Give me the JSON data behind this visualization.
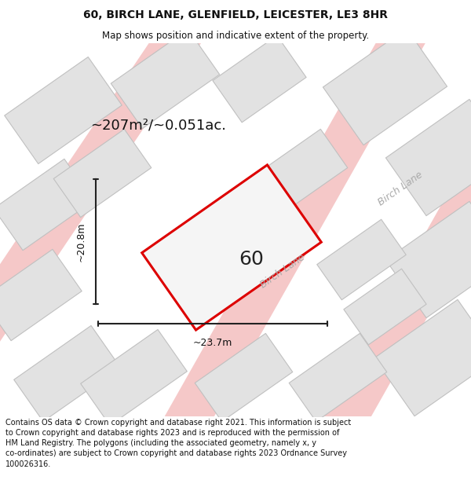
{
  "title": "60, BIRCH LANE, GLENFIELD, LEICESTER, LE3 8HR",
  "subtitle": "Map shows position and indicative extent of the property.",
  "footer": "Contains OS data © Crown copyright and database right 2021. This information is subject\nto Crown copyright and database rights 2023 and is reproduced with the permission of\nHM Land Registry. The polygons (including the associated geometry, namely x, y\nco-ordinates) are subject to Crown copyright and database rights 2023 Ordnance Survey\n100026316.",
  "bg_color": "#ffffff",
  "map_bg_color": "#f2f2f2",
  "red_outline_color": "#dd0000",
  "neighbor_fill": "#e2e2e2",
  "neighbor_stroke": "#c0c0c0",
  "road_color": "#f5c8c8",
  "area_text": "~207m²/~0.051ac.",
  "width_text": "~23.7m",
  "height_text": "~20.8m",
  "label_60": "60",
  "birch_lane_label_diag1": "Birch Lane",
  "birch_lane_label_diag2": "Birch Lane"
}
